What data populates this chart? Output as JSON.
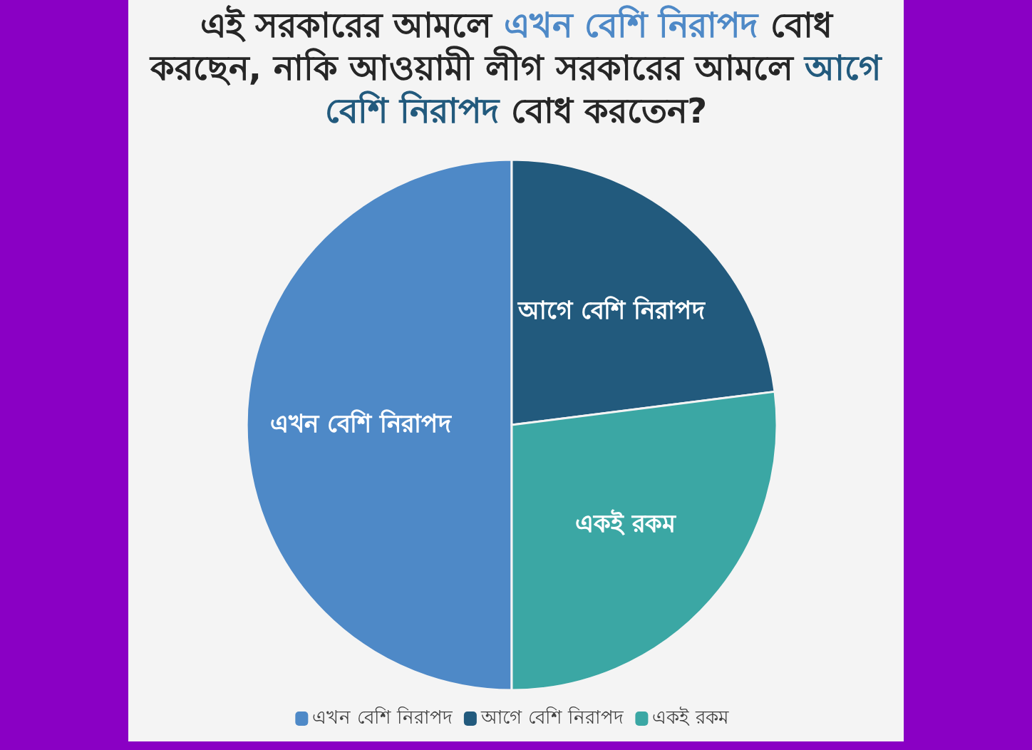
{
  "chart_data": {
    "type": "pie",
    "title": "এই সরকারের আমলে এখন বেশি নিরাপদ বোধ করছেন, নাকি আওয়ামী লীগ সরকারের আমলে আগে বেশি নিরাপদ বোধ করতেন?",
    "categories": [
      "এখন বেশি নিরাপদ",
      "আগে বেশি নিরাপদ",
      "একই রকম"
    ],
    "values": [
      50,
      23,
      27
    ],
    "colors": [
      "#4e89c7",
      "#225a7d",
      "#3ba7a4"
    ],
    "legend": "bottom"
  }
}
